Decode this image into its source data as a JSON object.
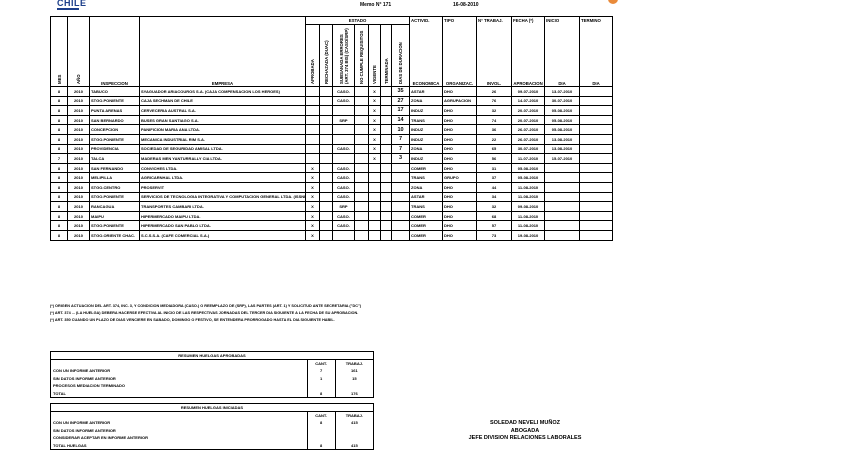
{
  "header": {
    "logo_text": "CHILE",
    "memo": "Memo N° 171",
    "date": "16-08-2010"
  },
  "columns": {
    "mes": "MES",
    "anio": "AÑO",
    "inspeccion": "INSPECCION",
    "empresa": "EMPRESA",
    "estado": "ESTADO",
    "estado_sub": [
      "APROBADA",
      "RECHAZADA (DUAC)",
      "SUBSANADA ERRORES (ART. 374 BIS) (CASO/SRP)",
      "NO CUMPLE REQUISITOS",
      "VIGENTE",
      "TERMINADA",
      "DIAS DE DURACION"
    ],
    "actividad": [
      "ACTIVID.",
      "ECONOMICA"
    ],
    "tipo": [
      "TIPO",
      "ORGANIZAC."
    ],
    "trabaj": [
      "N° TRABAJ.",
      "INVOL."
    ],
    "fecha": [
      "FECHA (*)",
      "APROBACION"
    ],
    "inicio": [
      "INICIO",
      "DIA"
    ],
    "termino": [
      "TERMINO",
      "DIA"
    ]
  },
  "rows": [
    [
      "8",
      "2010",
      "TABUCO",
      "SYAGUADOR ARIACOUROS S.A. (CAJA COMPENSACION LOS HEROES)",
      "",
      "",
      "CASO.",
      "",
      "X",
      "",
      "35",
      "ASTAR",
      "DHO",
      "26",
      "09-07-2010",
      "13-07-2010",
      ""
    ],
    [
      "8",
      "2010",
      "STGO.PONIENTE",
      "CAJA SECHMAN DE CHILE",
      "",
      "",
      "CASO.",
      "",
      "X",
      "",
      "27",
      "ZONA",
      "AGRUPACION",
      "76",
      "14-07-2010",
      "30-07-2010",
      ""
    ],
    [
      "8",
      "2010",
      "PUNTA ARENAS",
      "CERVECERIA AUSTRAL S.A.",
      "",
      "",
      "",
      "",
      "X",
      "",
      "17",
      "INDUZ",
      "DHO",
      "32",
      "20-07-2010",
      "05-08-2010",
      ""
    ],
    [
      "8",
      "2010",
      "SAN BERNARDO",
      "BUSES GRAN SANTIAGO S.A.",
      "",
      "",
      "SRP",
      "",
      "X",
      "",
      "14",
      "TRANS",
      "DHO",
      "74",
      "20-07-2010",
      "05-08-2010",
      ""
    ],
    [
      "8",
      "2010",
      "CONCEPCION",
      "PANIFICION MARIA ANA LTDA.",
      "",
      "",
      "",
      "",
      "X",
      "",
      "10",
      "INDUZ",
      "DHO",
      "36",
      "26-07-2010",
      "05-08-2010",
      ""
    ],
    [
      "8",
      "2010",
      "STGO.PONIENTE",
      "MECANICA INDUSTRIAL RIM S.A.",
      "",
      "",
      "",
      "",
      "X",
      "",
      "7",
      "INDUZ",
      "DHO",
      "22",
      "26-07-2010",
      "13-08-2010",
      ""
    ],
    [
      "8",
      "2010",
      "PROVIDENCIA",
      "SOCIEDAD DE SEGURIDAD AMISAL LTDA.",
      "",
      "",
      "CASO.",
      "",
      "X",
      "",
      "7",
      "ZONA",
      "DHO",
      "65",
      "30-07-2010",
      "13-08-2010",
      ""
    ],
    [
      "7",
      "2010",
      "TALCA",
      "MADERAS MEN YANTURRALLY CIA LTDA.",
      "",
      "",
      "",
      "",
      "X",
      "",
      "3",
      "INDUZ",
      "DHO",
      "56",
      "11-07-2010",
      "15-07-2010",
      ""
    ],
    [
      "8",
      "2010",
      "SAN FERNANDO",
      "CONVICHES LTDA.",
      "X",
      "",
      "CASO.",
      "",
      "",
      "",
      "",
      "COMER",
      "DHO",
      "31",
      "05-08-2010",
      "",
      ""
    ],
    [
      "8",
      "2010",
      "MELIPILLA",
      "AGRICARNHAL LTDA.",
      "X",
      "",
      "CASO.",
      "",
      "",
      "",
      "",
      "TRANS",
      "GRUPO",
      "37",
      "05-08-2010",
      "",
      ""
    ],
    [
      "8",
      "2010",
      "STGO.CENTRO",
      "PROSERVIT",
      "X",
      "",
      "CASO.",
      "",
      "",
      "",
      "",
      "ZONA",
      "DHO",
      "44",
      "11-08-2010",
      "",
      ""
    ],
    [
      "8",
      "2010",
      "STGO.PONIENTE",
      "SERVICIOS DE TECNOLOGIA INTEGRATIVA Y COMPUTACION GENERAL LTDA. (ISSNET)",
      "X",
      "",
      "CASO.",
      "",
      "",
      "",
      "",
      "ASTAR",
      "DHO",
      "34",
      "11-08-2010",
      "",
      ""
    ],
    [
      "8",
      "2010",
      "RANCAGUA",
      "TRANSPORTES CAMBARI LTDA.",
      "X",
      "",
      "SRP",
      "",
      "",
      "",
      "",
      "TRANS",
      "DHO",
      "32",
      "09-08-2010",
      "",
      ""
    ],
    [
      "8",
      "2010",
      "MAIPU",
      "HIPERMERCADO MAIPU LTDA.",
      "X",
      "",
      "CASO.",
      "",
      "",
      "",
      "",
      "COMER",
      "DHO",
      "68",
      "11-08-2010",
      "",
      ""
    ],
    [
      "8",
      "2010",
      "STGO.PONIENTE",
      "HIPERMERCADO SAN PABLO LTDA.",
      "X",
      "",
      "CASO.",
      "",
      "",
      "",
      "",
      "COMER",
      "DHO",
      "57",
      "11-08-2010",
      "",
      ""
    ],
    [
      "8",
      "2010",
      "STGO.ORIENTE CHAC.",
      "S.C.S.S.A. (CAFE COMERCIAL S.A.)",
      "X",
      "",
      "",
      "",
      "",
      "",
      "",
      "COMER",
      "DHO",
      "73",
      "19-08-2010",
      "",
      ""
    ]
  ],
  "notes": [
    "(*) ORIGEN ACTUACION DEL ART. 374, INC. 3, Y CONDICION MEDIADORA (CASO.) O REEMPLAZO DE (SRP), LAS PARTES (ART. 1) Y SOLICITUD ANTE SECRETARIA (\"DC\")",
    "(*) ART. 374 ... (LA HUELGA) DEBERA HACERSE EFECTIVA AL INICIO DE LAS RESPECTIVAS JORNADAS DEL TERCER DIA SIGUIENTE A LA FECHA DE SU APROBACION.",
    "(*) ART. 350 CUANDO UN PLAZO DE DIAS VENCIERE EN SABADO, DOMINGO O FESTIVO, SE ENTENDERA PRORROGADO HASTA EL DIA SIGUIENTE HABIL."
  ],
  "summary_approved": {
    "title": "RESUMEN HUELGAS APROBADAS",
    "col_cant": "CANT.",
    "col_trab": "TRABAJ.",
    "rows": [
      {
        "label": "CON UN INFORME ANTERIOR",
        "cant": "7",
        "trab": "161"
      },
      {
        "label": "SIN DATOS INFORME ANTERIOR",
        "cant": "1",
        "trab": "15"
      },
      {
        "label": "PROCESOS MEDIACION TERMINADO",
        "cant": "",
        "trab": ""
      },
      {
        "label": "TOTAL",
        "cant": "8",
        "trab": "176"
      }
    ]
  },
  "summary_started": {
    "title": "RESUMEN HUELGAS INICIADAS",
    "col_cant": "CANT.",
    "col_trab": "TRABAJ.",
    "rows": [
      {
        "label": "CON UN INFORME ANTERIOR",
        "cant": "8",
        "trab": "415"
      },
      {
        "label": "SIN DATOS INFORME ANTERIOR",
        "cant": "",
        "trab": ""
      },
      {
        "label": "CONSIDERAR ACEPTAR EN INFORME ANTERIOR",
        "cant": "",
        "trab": ""
      },
      {
        "label": "TOTAL HUELGAS",
        "cant": "8",
        "trab": "415"
      }
    ]
  },
  "signature": {
    "name": "SOLEDAD NEVELI MUÑOZ",
    "role": "ABOGADA",
    "title": "JEFE DIVISION RELACIONES LABORALES"
  },
  "colors": {
    "logo_blue": "#1d3f8a",
    "logo_orange": "#e98a3a"
  }
}
